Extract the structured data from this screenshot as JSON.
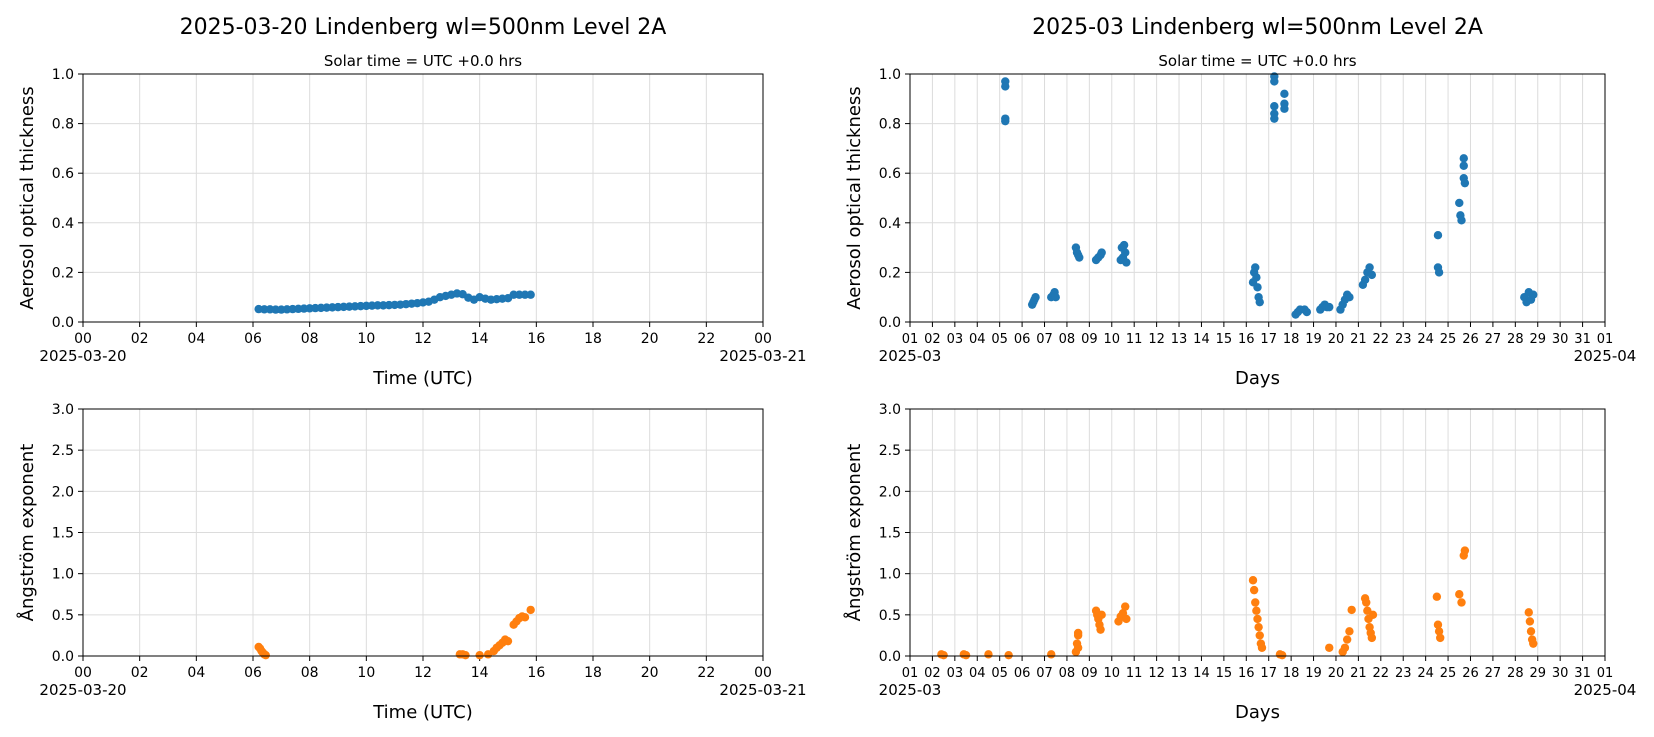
{
  "chart_data": [
    {
      "type": "scatter",
      "title": "2025-03-20  Lindenberg  wl=500nm  Level 2A",
      "subtitle": "Solar time = UTC +0.0 hrs",
      "xlabel": "Time (UTC)",
      "ylabel": "Aerosol optical thickness",
      "xlim": [
        0,
        24
      ],
      "ylim": [
        0,
        1.0
      ],
      "x_ticks": [
        "00",
        "02",
        "04",
        "06",
        "08",
        "10",
        "12",
        "14",
        "16",
        "18",
        "20",
        "22",
        "00"
      ],
      "x_range_labels": [
        "2025-03-20",
        "2025-03-21"
      ],
      "y_ticks": [
        "0.0",
        "0.2",
        "0.4",
        "0.6",
        "0.8",
        "1.0"
      ],
      "grid": true,
      "color": "#1f77b4",
      "series": [
        {
          "x": [
            6.2,
            6.4,
            6.6,
            6.8,
            7.0,
            7.2,
            7.4,
            7.6,
            7.8,
            8.0,
            8.2,
            8.4,
            8.6,
            8.8,
            9.0,
            9.2,
            9.4,
            9.6,
            9.8,
            10.0,
            10.2,
            10.4,
            10.6,
            10.8,
            11.0,
            11.2,
            11.4,
            11.6,
            11.8,
            12.0,
            12.2,
            12.4,
            12.6,
            12.8,
            13.0,
            13.2,
            13.4,
            13.6,
            13.8,
            14.0,
            14.2,
            14.4,
            14.6,
            14.8,
            15.0,
            15.2,
            15.4,
            15.6,
            15.8
          ],
          "y": [
            0.052,
            0.051,
            0.051,
            0.05,
            0.05,
            0.051,
            0.052,
            0.053,
            0.054,
            0.055,
            0.056,
            0.057,
            0.058,
            0.059,
            0.06,
            0.061,
            0.062,
            0.063,
            0.064,
            0.065,
            0.066,
            0.067,
            0.067,
            0.068,
            0.069,
            0.07,
            0.072,
            0.074,
            0.076,
            0.079,
            0.082,
            0.09,
            0.1,
            0.105,
            0.11,
            0.115,
            0.112,
            0.098,
            0.09,
            0.1,
            0.094,
            0.09,
            0.092,
            0.094,
            0.096,
            0.11,
            0.11,
            0.11,
            0.11
          ]
        }
      ]
    },
    {
      "type": "scatter",
      "title": "2025-03  Lindenberg  wl=500nm  Level 2A",
      "subtitle": "Solar time = UTC +0.0 hrs",
      "xlabel": "Days",
      "ylabel": "Aerosol optical thickness",
      "xlim": [
        1,
        32
      ],
      "ylim": [
        0,
        1.0
      ],
      "x_ticks": [
        "01",
        "02",
        "03",
        "04",
        "05",
        "06",
        "07",
        "08",
        "09",
        "10",
        "11",
        "12",
        "13",
        "14",
        "15",
        "16",
        "17",
        "18",
        "19",
        "20",
        "21",
        "22",
        "23",
        "24",
        "25",
        "26",
        "27",
        "28",
        "29",
        "30",
        "31",
        "01"
      ],
      "x_range_labels": [
        "2025-03",
        "2025-04"
      ],
      "y_ticks": [
        "0.0",
        "0.2",
        "0.4",
        "0.6",
        "0.8",
        "1.0"
      ],
      "grid": true,
      "color": "#1f77b4",
      "series": [
        {
          "x": [
            5.25,
            5.25,
            5.25,
            5.25,
            6.45,
            6.5,
            6.55,
            6.6,
            7.3,
            7.4,
            7.45,
            7.5,
            8.4,
            8.45,
            8.5,
            8.55,
            9.3,
            9.4,
            9.5,
            9.55,
            10.4,
            10.45,
            10.5,
            10.55,
            10.6,
            10.65,
            16.3,
            16.35,
            16.4,
            16.45,
            16.5,
            16.55,
            16.6,
            17.25,
            17.25,
            17.25,
            17.25,
            17.25,
            17.7,
            17.7,
            17.7,
            18.2,
            18.3,
            18.4,
            18.6,
            18.7,
            19.3,
            19.4,
            19.5,
            19.6,
            19.7,
            20.2,
            20.3,
            20.4,
            20.5,
            20.6,
            21.2,
            21.3,
            21.4,
            21.5,
            21.6,
            24.55,
            24.55,
            24.6,
            25.5,
            25.55,
            25.6,
            25.7,
            25.7,
            25.7,
            25.75,
            28.4,
            28.5,
            28.6,
            28.7,
            28.8
          ],
          "y": [
            0.97,
            0.95,
            0.82,
            0.81,
            0.07,
            0.08,
            0.09,
            0.1,
            0.1,
            0.11,
            0.12,
            0.1,
            0.3,
            0.28,
            0.27,
            0.26,
            0.25,
            0.26,
            0.27,
            0.28,
            0.25,
            0.3,
            0.26,
            0.31,
            0.28,
            0.24,
            0.16,
            0.2,
            0.22,
            0.18,
            0.14,
            0.1,
            0.08,
            0.99,
            0.97,
            0.87,
            0.84,
            0.82,
            0.92,
            0.88,
            0.86,
            0.03,
            0.04,
            0.05,
            0.05,
            0.04,
            0.05,
            0.06,
            0.07,
            0.06,
            0.06,
            0.05,
            0.07,
            0.09,
            0.11,
            0.1,
            0.15,
            0.17,
            0.2,
            0.22,
            0.19,
            0.35,
            0.22,
            0.2,
            0.48,
            0.43,
            0.41,
            0.66,
            0.63,
            0.58,
            0.56,
            0.1,
            0.08,
            0.12,
            0.09,
            0.11
          ]
        }
      ]
    },
    {
      "type": "scatter",
      "title": "",
      "xlabel": "Time (UTC)",
      "ylabel": "Ångström exponent",
      "xlim": [
        0,
        24
      ],
      "ylim": [
        0,
        3.0
      ],
      "x_ticks": [
        "00",
        "02",
        "04",
        "06",
        "08",
        "10",
        "12",
        "14",
        "16",
        "18",
        "20",
        "22",
        "00"
      ],
      "x_range_labels": [
        "2025-03-20",
        "2025-03-21"
      ],
      "y_ticks": [
        "0.0",
        "0.5",
        "1.0",
        "1.5",
        "2.0",
        "2.5",
        "3.0"
      ],
      "grid": true,
      "color": "#ff7f0e",
      "series": [
        {
          "x": [
            6.2,
            6.25,
            6.3,
            6.35,
            6.4,
            6.45,
            13.3,
            13.4,
            13.5,
            14.0,
            14.3,
            14.5,
            14.6,
            14.7,
            14.8,
            14.9,
            15.0,
            15.2,
            15.3,
            15.4,
            15.5,
            15.6,
            15.8
          ],
          "y": [
            0.11,
            0.09,
            0.06,
            0.04,
            0.02,
            0.01,
            0.02,
            0.02,
            0.01,
            0.01,
            0.02,
            0.06,
            0.1,
            0.13,
            0.16,
            0.2,
            0.18,
            0.38,
            0.42,
            0.46,
            0.48,
            0.47,
            0.56
          ]
        }
      ]
    },
    {
      "type": "scatter",
      "title": "",
      "xlabel": "Days",
      "ylabel": "Ångström exponent",
      "xlim": [
        1,
        32
      ],
      "ylim": [
        0,
        3.0
      ],
      "x_ticks": [
        "01",
        "02",
        "03",
        "04",
        "05",
        "06",
        "07",
        "08",
        "09",
        "10",
        "11",
        "12",
        "13",
        "14",
        "15",
        "16",
        "17",
        "18",
        "19",
        "20",
        "21",
        "22",
        "23",
        "24",
        "25",
        "26",
        "27",
        "28",
        "29",
        "30",
        "31",
        "01"
      ],
      "x_range_labels": [
        "2025-03",
        "2025-04"
      ],
      "y_ticks": [
        "0.0",
        "0.5",
        "1.0",
        "1.5",
        "2.0",
        "2.5",
        "3.0"
      ],
      "grid": true,
      "color": "#ff7f0e",
      "series": [
        {
          "x": [
            2.4,
            2.5,
            3.4,
            3.5,
            4.5,
            5.4,
            7.3,
            8.4,
            8.5,
            8.45,
            8.5,
            8.5,
            9.3,
            9.35,
            9.4,
            9.45,
            9.5,
            9.55,
            10.3,
            10.4,
            10.5,
            10.6,
            10.65,
            16.3,
            16.35,
            16.4,
            16.45,
            16.5,
            16.55,
            16.6,
            16.65,
            16.7,
            17.5,
            17.6,
            19.7,
            20.3,
            20.4,
            20.5,
            20.6,
            20.7,
            21.3,
            21.35,
            21.4,
            21.45,
            21.5,
            21.55,
            21.6,
            21.65,
            24.5,
            24.55,
            24.6,
            24.65,
            25.5,
            25.6,
            25.7,
            25.75,
            28.6,
            28.65,
            28.7,
            28.75,
            28.8
          ],
          "y": [
            0.02,
            0.01,
            0.02,
            0.01,
            0.02,
            0.01,
            0.02,
            0.05,
            0.1,
            0.15,
            0.25,
            0.28,
            0.55,
            0.5,
            0.45,
            0.38,
            0.32,
            0.5,
            0.42,
            0.48,
            0.52,
            0.6,
            0.45,
            0.92,
            0.8,
            0.65,
            0.55,
            0.45,
            0.35,
            0.25,
            0.15,
            0.1,
            0.02,
            0.01,
            0.1,
            0.05,
            0.1,
            0.2,
            0.3,
            0.56,
            0.7,
            0.65,
            0.55,
            0.45,
            0.35,
            0.28,
            0.22,
            0.5,
            0.72,
            0.38,
            0.3,
            0.22,
            0.75,
            0.65,
            1.22,
            1.28,
            0.53,
            0.42,
            0.3,
            0.2,
            0.15
          ]
        }
      ]
    }
  ]
}
